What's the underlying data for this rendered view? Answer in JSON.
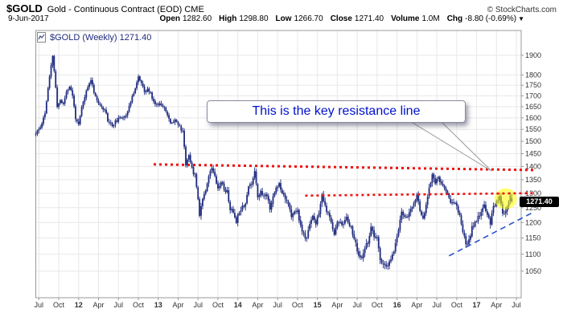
{
  "header": {
    "symbol": "$GOLD",
    "description": "Gold - Continuous Contract (EOD) CME",
    "watermark": "© StockCharts.com",
    "date": "9-Jun-2017",
    "quote": [
      {
        "label": "Open",
        "value": "1282.60"
      },
      {
        "label": "High",
        "value": "1298.80"
      },
      {
        "label": "Low",
        "value": "1266.70"
      },
      {
        "label": "Close",
        "value": "1271.40"
      },
      {
        "label": "Volume",
        "value": "1.0M"
      },
      {
        "label": "Chg",
        "value": "-8.80 (-0.69%)"
      }
    ],
    "chg_arrow": "▼"
  },
  "legend": {
    "text": "$GOLD (Weekly) 1271.40"
  },
  "price_tag": {
    "value": "1271.40",
    "price": 1271.4
  },
  "callout": {
    "text": "This is the key resistance line"
  },
  "colors": {
    "candle": "#1f2b7e",
    "legend_text": "#1f2b7e",
    "callout_text": "#0011cc",
    "resistance": "#ee1111",
    "support": "#2a52cc",
    "highlight": "#ffff00",
    "grid": "#e8e8e8",
    "frame": "#999999",
    "axis_text": "#333333"
  },
  "chart_data": {
    "type": "candlestick",
    "title": "$GOLD (Weekly)",
    "scale": "log",
    "ylim": [
      976,
      2034
    ],
    "y_ticks": [
      1900,
      1800,
      1750,
      1700,
      1650,
      1600,
      1550,
      1500,
      1450,
      1400,
      1350,
      1300,
      1250,
      1200,
      1150,
      1100,
      1050
    ],
    "x_labels": [
      {
        "t": 2,
        "label": "Jul"
      },
      {
        "t": 15,
        "label": "Oct"
      },
      {
        "t": 28,
        "label": "12"
      },
      {
        "t": 41,
        "label": "Apr"
      },
      {
        "t": 54,
        "label": "Jul"
      },
      {
        "t": 67,
        "label": "Oct"
      },
      {
        "t": 80,
        "label": "13"
      },
      {
        "t": 93,
        "label": "Apr"
      },
      {
        "t": 106,
        "label": "Jul"
      },
      {
        "t": 119,
        "label": "Oct"
      },
      {
        "t": 132,
        "label": "14"
      },
      {
        "t": 145,
        "label": "Apr"
      },
      {
        "t": 158,
        "label": "Jul"
      },
      {
        "t": 171,
        "label": "Oct"
      },
      {
        "t": 184,
        "label": "15"
      },
      {
        "t": 197,
        "label": "Apr"
      },
      {
        "t": 210,
        "label": "Jul"
      },
      {
        "t": 223,
        "label": "Oct"
      },
      {
        "t": 236,
        "label": "16"
      },
      {
        "t": 249,
        "label": "Apr"
      },
      {
        "t": 262,
        "label": "Jul"
      },
      {
        "t": 275,
        "label": "Oct"
      },
      {
        "t": 288,
        "label": "17"
      },
      {
        "t": 301,
        "label": "Apr"
      },
      {
        "t": 314,
        "label": "Jul"
      }
    ],
    "weeks": 311,
    "last_bar": {
      "open": 1282.6,
      "high": 1298.8,
      "low": 1266.7,
      "close": 1271.4
    },
    "anchors": [
      [
        0,
        1530
      ],
      [
        3,
        1560
      ],
      [
        6,
        1620
      ],
      [
        9,
        1790
      ],
      [
        11,
        1898
      ],
      [
        12,
        1820
      ],
      [
        14,
        1650
      ],
      [
        16,
        1680
      ],
      [
        18,
        1660
      ],
      [
        20,
        1720
      ],
      [
        22,
        1745
      ],
      [
        24,
        1700
      ],
      [
        26,
        1600
      ],
      [
        28,
        1565
      ],
      [
        30,
        1645
      ],
      [
        33,
        1720
      ],
      [
        36,
        1780
      ],
      [
        38,
        1720
      ],
      [
        40,
        1680
      ],
      [
        42,
        1650
      ],
      [
        45,
        1640
      ],
      [
        47,
        1590
      ],
      [
        50,
        1565
      ],
      [
        53,
        1590
      ],
      [
        56,
        1600
      ],
      [
        59,
        1615
      ],
      [
        62,
        1670
      ],
      [
        65,
        1740
      ],
      [
        67,
        1790
      ],
      [
        69,
        1760
      ],
      [
        71,
        1715
      ],
      [
        73,
        1730
      ],
      [
        75,
        1710
      ],
      [
        78,
        1660
      ],
      [
        81,
        1665
      ],
      [
        84,
        1650
      ],
      [
        86,
        1610
      ],
      [
        88,
        1575
      ],
      [
        91,
        1595
      ],
      [
        94,
        1560
      ],
      [
        96,
        1540
      ],
      [
        97,
        1480
      ],
      [
        98,
        1405
      ],
      [
        100,
        1450
      ],
      [
        102,
        1390
      ],
      [
        104,
        1365
      ],
      [
        106,
        1285
      ],
      [
        107,
        1225
      ],
      [
        109,
        1285
      ],
      [
        111,
        1315
      ],
      [
        113,
        1365
      ],
      [
        115,
        1395
      ],
      [
        117,
        1370
      ],
      [
        119,
        1315
      ],
      [
        121,
        1345
      ],
      [
        123,
        1315
      ],
      [
        125,
        1305
      ],
      [
        127,
        1245
      ],
      [
        129,
        1235
      ],
      [
        131,
        1205
      ],
      [
        133,
        1240
      ],
      [
        135,
        1255
      ],
      [
        137,
        1265
      ],
      [
        139,
        1325
      ],
      [
        141,
        1335
      ],
      [
        143,
        1385
      ],
      [
        145,
        1290
      ],
      [
        147,
        1305
      ],
      [
        149,
        1290
      ],
      [
        151,
        1295
      ],
      [
        153,
        1250
      ],
      [
        155,
        1285
      ],
      [
        157,
        1320
      ],
      [
        159,
        1335
      ],
      [
        161,
        1305
      ],
      [
        163,
        1285
      ],
      [
        165,
        1265
      ],
      [
        167,
        1215
      ],
      [
        169,
        1235
      ],
      [
        171,
        1240
      ],
      [
        173,
        1185
      ],
      [
        175,
        1160
      ],
      [
        177,
        1145
      ],
      [
        179,
        1200
      ],
      [
        181,
        1225
      ],
      [
        183,
        1190
      ],
      [
        185,
        1235
      ],
      [
        187,
        1290
      ],
      [
        189,
        1255
      ],
      [
        191,
        1225
      ],
      [
        193,
        1200
      ],
      [
        195,
        1165
      ],
      [
        197,
        1200
      ],
      [
        199,
        1205
      ],
      [
        201,
        1190
      ],
      [
        203,
        1220
      ],
      [
        205,
        1195
      ],
      [
        207,
        1165
      ],
      [
        209,
        1130
      ],
      [
        211,
        1095
      ],
      [
        213,
        1085
      ],
      [
        215,
        1115
      ],
      [
        217,
        1140
      ],
      [
        219,
        1180
      ],
      [
        221,
        1155
      ],
      [
        223,
        1145
      ],
      [
        225,
        1085
      ],
      [
        227,
        1070
      ],
      [
        229,
        1058
      ],
      [
        231,
        1075
      ],
      [
        233,
        1095
      ],
      [
        235,
        1130
      ],
      [
        237,
        1180
      ],
      [
        239,
        1240
      ],
      [
        241,
        1215
      ],
      [
        243,
        1225
      ],
      [
        245,
        1240
      ],
      [
        247,
        1265
      ],
      [
        249,
        1290
      ],
      [
        251,
        1245
      ],
      [
        253,
        1215
      ],
      [
        255,
        1255
      ],
      [
        257,
        1325
      ],
      [
        259,
        1365
      ],
      [
        261,
        1340
      ],
      [
        263,
        1355
      ],
      [
        265,
        1330
      ],
      [
        267,
        1320
      ],
      [
        269,
        1305
      ],
      [
        271,
        1265
      ],
      [
        273,
        1270
      ],
      [
        275,
        1250
      ],
      [
        277,
        1225
      ],
      [
        279,
        1170
      ],
      [
        281,
        1128
      ],
      [
        283,
        1140
      ],
      [
        285,
        1185
      ],
      [
        287,
        1200
      ],
      [
        289,
        1215
      ],
      [
        291,
        1235
      ],
      [
        293,
        1255
      ],
      [
        295,
        1230
      ],
      [
        297,
        1200
      ],
      [
        299,
        1255
      ],
      [
        301,
        1270
      ],
      [
        303,
        1290
      ],
      [
        305,
        1225
      ],
      [
        307,
        1245
      ],
      [
        309,
        1265
      ],
      [
        310,
        1290
      ],
      [
        311,
        1271.4
      ]
    ],
    "overlays": {
      "resistance_main": {
        "t1": 77,
        "p1": 1408,
        "t2": 326,
        "p2": 1386
      },
      "resistance_minor": {
        "t1": 176,
        "p1": 1292,
        "t2": 326,
        "p2": 1301
      },
      "support_trend": {
        "t1": 270,
        "p1": 1095,
        "t2": 326,
        "p2": 1237
      },
      "highlight": {
        "t": 307,
        "p": 1281
      }
    }
  }
}
